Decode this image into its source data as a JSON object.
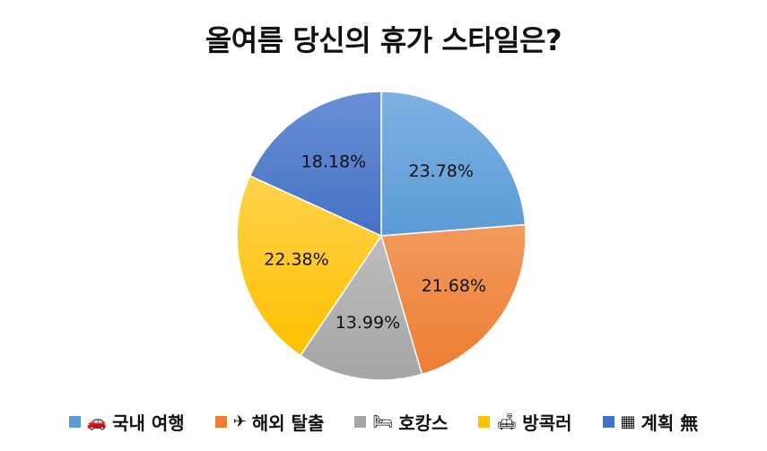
{
  "chart_data": {
    "type": "pie",
    "title": "올여름 당신의 휴가 스타일은?",
    "start_angle_deg": 0,
    "direction": "clockwise",
    "legend_position": "bottom",
    "slices": [
      {
        "label": "국내 여행",
        "icon": "car-icon",
        "icon_glyph": "🚗",
        "value": 23.78,
        "display": "23.78%",
        "color": "#5b9bd5",
        "color_light": "#7eb1e3"
      },
      {
        "label": "해외 탈출",
        "icon": "airplane-icon",
        "icon_glyph": "✈",
        "value": 21.68,
        "display": "21.68%",
        "color": "#ed7d31",
        "color_light": "#f29a5d"
      },
      {
        "label": "호캉스",
        "icon": "bed-icon",
        "icon_glyph": "🛏",
        "value": 13.99,
        "display": "13.99%",
        "color": "#a5a5a5",
        "color_light": "#bdbdbd"
      },
      {
        "label": "방콕러",
        "icon": "sofa-icon",
        "icon_glyph": "🛋",
        "value": 22.38,
        "display": "22.38%",
        "color": "#ffc000",
        "color_light": "#ffd24a"
      },
      {
        "label": "계획 無",
        "icon": "calendar-icon",
        "icon_glyph": "▦",
        "value": 18.18,
        "display": "18.18%",
        "color": "#4472c4",
        "color_light": "#6a8fd6"
      }
    ]
  }
}
